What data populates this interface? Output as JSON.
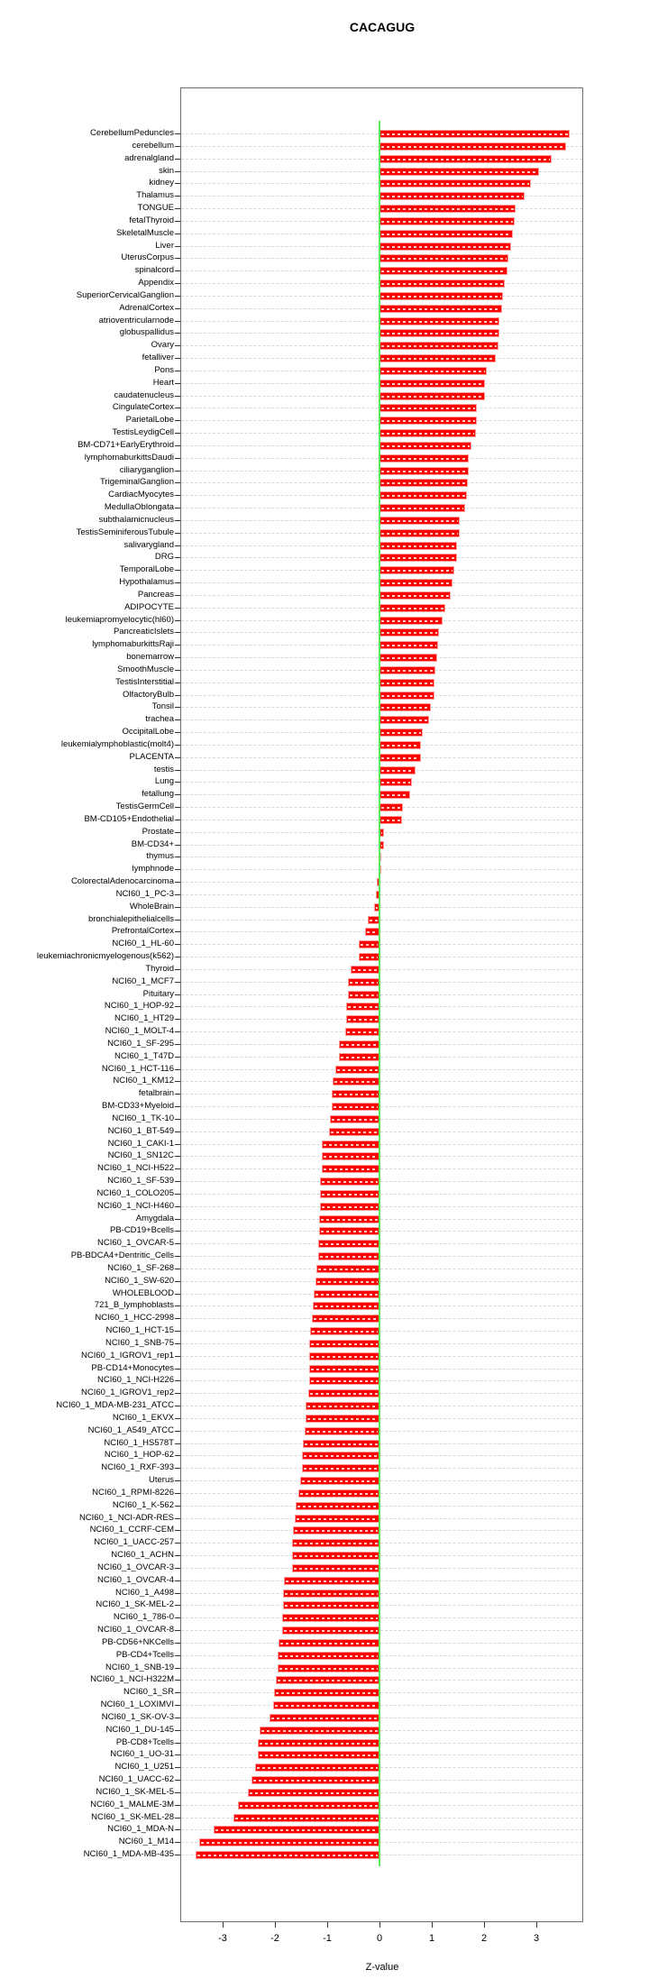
{
  "title": "CACAGUG",
  "chart_data": {
    "type": "bar",
    "orientation": "horizontal",
    "title": "CACAGUG",
    "xlabel": "Z-value",
    "x_ticks": [
      -3,
      -2,
      -1,
      0,
      1,
      2,
      3
    ],
    "xlim": [
      -3.8,
      3.9
    ],
    "grid": "dashed-horizontal-per-row",
    "legend": "none",
    "bar_color": "#ff0000",
    "bar_border_color": "#ff9c9c",
    "zero_line_color": "#5ae85a",
    "categories": [
      "CerebellumPeduncles",
      "cerebellum",
      "adrenalgland",
      "skin",
      "kidney",
      "Thalamus",
      "TONGUE",
      "fetalThyroid",
      "SkeletalMuscle",
      "Liver",
      "UterusCorpus",
      "spinalcord",
      "Appendix",
      "SuperiorCervicalGanglion",
      "AdrenalCortex",
      "atrioventricularnode",
      "globuspallidus",
      "Ovary",
      "fetalliver",
      "Pons",
      "Heart",
      "caudatenucleus",
      "CingulateCortex",
      "ParietalLobe",
      "TestisLeydigCell",
      "BM-CD71+EarlyErythroid",
      "lymphomaburkittsDaudi",
      "ciliaryganglion",
      "TrigeminalGanglion",
      "CardiacMyocytes",
      "MedullaOblongata",
      "subthalamicnucleus",
      "TestisSeminiferousTubule",
      "salivarygland",
      "DRG",
      "TemporalLobe",
      "Hypothalamus",
      "Pancreas",
      "ADIPOCYTE",
      "leukemiapromyelocytic(hl60)",
      "PancreaticIslets",
      "lymphomaburkittsRaji",
      "bonemarrow",
      "SmoothMuscle",
      "TestisInterstitial",
      "OlfactoryBulb",
      "Tonsil",
      "trachea",
      "OccipitalLobe",
      "leukemialymphoblastic(molt4)",
      "PLACENTA",
      "testis",
      "Lung",
      "fetallung",
      "TestisGermCell",
      "BM-CD105+Endothelial",
      "Prostate",
      "BM-CD34+",
      "thymus",
      "lymphnode",
      "ColorectalAdenocarcinoma",
      "NCI60_1_PC-3",
      "WholeBrain",
      "bronchialepithelialcells",
      "PrefrontalCortex",
      "NCI60_1_HL-60",
      "leukemiachronicmyelogenous(k562)",
      "Thyroid",
      "NCI60_1_MCF7",
      "Pituitary",
      "NCI60_1_HOP-92",
      "NCI60_1_HT29",
      "NCI60_1_MOLT-4",
      "NCI60_1_SF-295",
      "NCI60_1_T47D",
      "NCI60_1_HCT-116",
      "NCI60_1_KM12",
      "fetalbrain",
      "BM-CD33+Myeloid",
      "NCI60_1_TK-10",
      "NCI60_1_BT-549",
      "NCI60_1_CAKI-1",
      "NCI60_1_SN12C",
      "NCI60_1_NCI-H522",
      "NCI60_1_SF-539",
      "NCI60_1_COLO205",
      "NCI60_1_NCI-H460",
      "Amygdala",
      "PB-CD19+Bcells",
      "NCI60_1_OVCAR-5",
      "PB-BDCA4+Dentritic_Cells",
      "NCI60_1_SF-268",
      "NCI60_1_SW-620",
      "WHOLEBLOOD",
      "721_B_lymphoblasts",
      "NCI60_1_HCC-2998",
      "NCI60_1_HCT-15",
      "NCI60_1_SNB-75",
      "NCI60_1_IGROV1_rep1",
      "PB-CD14+Monocytes",
      "NCI60_1_NCI-H226",
      "NCI60_1_IGROV1_rep2",
      "NCI60_1_MDA-MB-231_ATCC",
      "NCI60_1_EKVX",
      "NCI60_1_A549_ATCC",
      "NCI60_1_HS578T",
      "NCI60_1_HOP-62",
      "NCI60_1_RXF-393",
      "Uterus",
      "NCI60_1_RPMI-8226",
      "NCI60_1_K-562",
      "NCI60_1_NCI-ADR-RES",
      "NCI60_1_CCRF-CEM",
      "NCI60_1_UACC-257",
      "NCI60_1_ACHN",
      "NCI60_1_OVCAR-3",
      "NCI60_1_OVCAR-4",
      "NCI60_1_A498",
      "NCI60_1_SK-MEL-2",
      "NCI60_1_786-0",
      "NCI60_1_OVCAR-8",
      "PB-CD56+NKCells",
      "PB-CD4+Tcells",
      "NCI60_1_SNB-19",
      "NCI60_1_NCI-H322M",
      "NCI60_1_SR",
      "NCI60_1_LOXIMVI",
      "NCI60_1_SK-OV-3",
      "NCI60_1_DU-145",
      "PB-CD8+Tcells",
      "NCI60_1_UO-31",
      "NCI60_1_U251",
      "NCI60_1_UACC-62",
      "NCI60_1_SK-MEL-5",
      "NCI60_1_MALME-3M",
      "NCI60_1_SK-MEL-28",
      "NCI60_1_MDA-N",
      "NCI60_1_M14",
      "NCI60_1_MDA-MB-435"
    ],
    "values": [
      3.63,
      3.57,
      3.3,
      3.06,
      2.9,
      2.77,
      2.6,
      2.59,
      2.55,
      2.51,
      2.47,
      2.45,
      2.39,
      2.37,
      2.35,
      2.29,
      2.29,
      2.28,
      2.22,
      2.06,
      2.02,
      2.01,
      1.87,
      1.86,
      1.85,
      1.75,
      1.71,
      1.7,
      1.69,
      1.68,
      1.64,
      1.54,
      1.53,
      1.49,
      1.49,
      1.43,
      1.39,
      1.37,
      1.26,
      1.21,
      1.14,
      1.12,
      1.11,
      1.07,
      1.06,
      1.06,
      0.99,
      0.94,
      0.83,
      0.8,
      0.8,
      0.69,
      0.62,
      0.59,
      0.44,
      0.43,
      0.09,
      0.09,
      0.04,
      0.03,
      -0.05,
      -0.07,
      -0.11,
      -0.22,
      -0.27,
      -0.39,
      -0.4,
      -0.55,
      -0.6,
      -0.61,
      -0.63,
      -0.63,
      -0.66,
      -0.78,
      -0.78,
      -0.84,
      -0.9,
      -0.91,
      -0.92,
      -0.95,
      -0.97,
      -1.1,
      -1.11,
      -1.11,
      -1.13,
      -1.13,
      -1.14,
      -1.16,
      -1.16,
      -1.17,
      -1.18,
      -1.2,
      -1.22,
      -1.26,
      -1.28,
      -1.3,
      -1.33,
      -1.34,
      -1.34,
      -1.34,
      -1.35,
      -1.36,
      -1.41,
      -1.41,
      -1.43,
      -1.47,
      -1.48,
      -1.49,
      -1.51,
      -1.56,
      -1.6,
      -1.62,
      -1.66,
      -1.67,
      -1.68,
      -1.68,
      -1.82,
      -1.84,
      -1.85,
      -1.86,
      -1.87,
      -1.93,
      -1.95,
      -1.95,
      -1.98,
      -2.01,
      -2.04,
      -2.11,
      -2.3,
      -2.32,
      -2.32,
      -2.38,
      -2.45,
      -2.52,
      -2.71,
      -2.8,
      -3.18,
      -3.45,
      -3.51
    ]
  }
}
